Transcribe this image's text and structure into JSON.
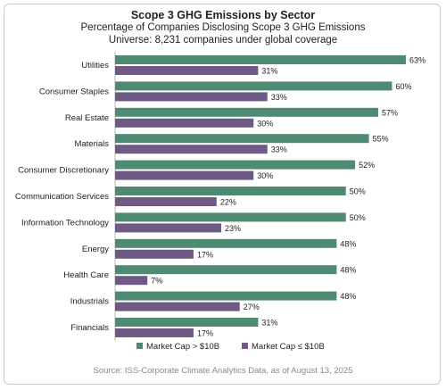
{
  "chart_data": {
    "type": "bar",
    "orientation": "horizontal",
    "title": "Scope 3 GHG Emissions by Sector",
    "subtitle": "Percentage of Companies Disclosing Scope 3 GHG Emissions",
    "subtitle2": "Universe: 8,231 companies under global coverage",
    "categories": [
      "Utilities",
      "Consumer Staples",
      "Real Estate",
      "Materials",
      "Consumer Discretionary",
      "Communication Services",
      "Information Technology",
      "Energy",
      "Health Care",
      "Industrials",
      "Financials"
    ],
    "series": [
      {
        "name": "Market Cap > $10B",
        "color": "#4f8a72",
        "values": [
          63,
          60,
          57,
          55,
          52,
          50,
          50,
          48,
          48,
          48,
          31
        ]
      },
      {
        "name": "Market Cap ≤ $10B",
        "color": "#6f5a86",
        "values": [
          31,
          33,
          30,
          33,
          30,
          22,
          23,
          17,
          7,
          27,
          17
        ]
      }
    ],
    "value_suffix": "%",
    "xlim": [
      0,
      63
    ],
    "legend_position": "bottom",
    "grid": false
  },
  "source": "Source: ISS-Corporate Climate Analytics Data, as of August 13, 2025"
}
